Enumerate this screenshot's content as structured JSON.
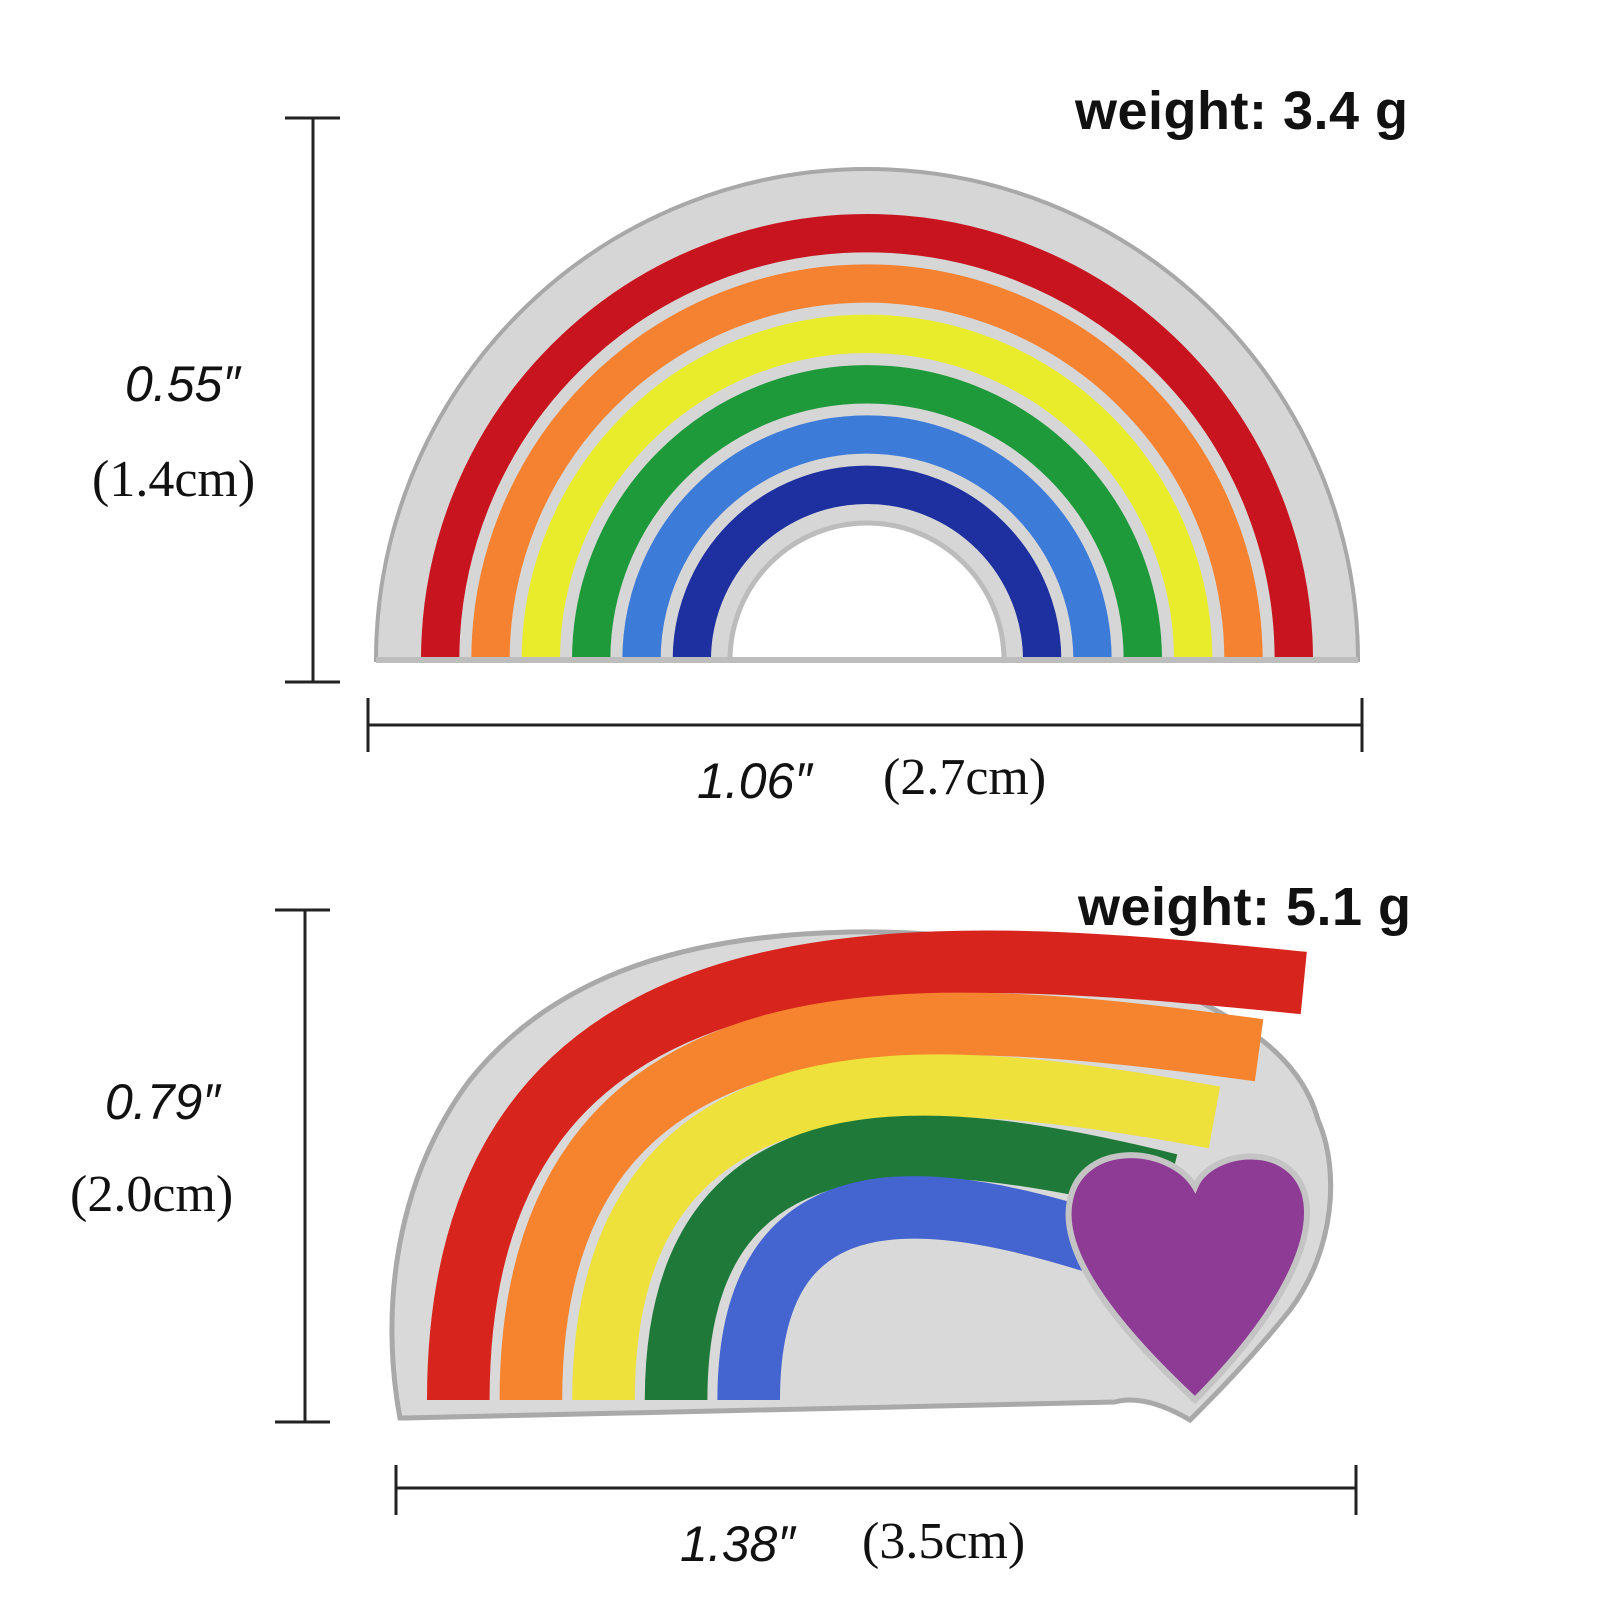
{
  "pins": [
    {
      "weight": "weight: 3.4 g",
      "height_in": "0.55″",
      "height_cm": "(1.4cm)",
      "width_in": "1.06″",
      "width_cm": "(2.7cm)",
      "colors": [
        "#c8141f",
        "#f58230",
        "#e8ec2a",
        "#1f9a3a",
        "#3d7bd9",
        "#1e2fa0"
      ],
      "outline_color": "#c9c9c9"
    },
    {
      "weight": "weight: 5.1 g",
      "height_in": "0.79″",
      "height_cm": "(2.0cm)",
      "width_in": "1.38″",
      "width_cm": "(3.5cm)",
      "colors": [
        "#d7251e",
        "#f6842f",
        "#eee13c",
        "#1f7a3a",
        "#4464d0"
      ],
      "heart_color": "#8e3b96",
      "outline_color": "#c9c9c9"
    }
  ]
}
